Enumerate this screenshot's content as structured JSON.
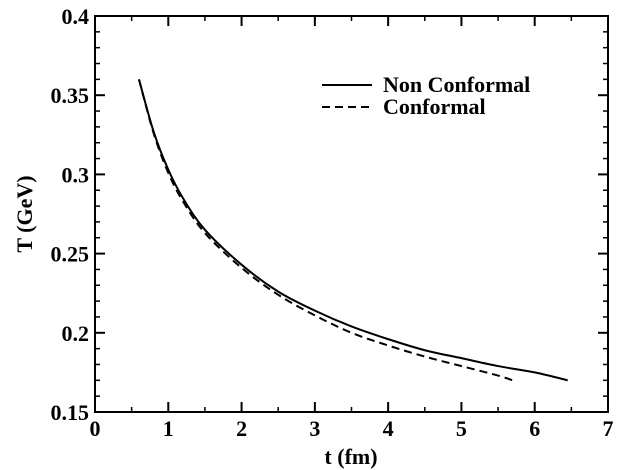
{
  "chart_data": {
    "type": "line",
    "title": "",
    "xlabel": "t (fm)",
    "ylabel": "T (GeV)",
    "xlim": [
      0,
      7
    ],
    "ylim": [
      0.15,
      0.4
    ],
    "x_ticks": [
      "0",
      "1",
      "2",
      "3",
      "4",
      "5",
      "6",
      "7"
    ],
    "y_ticks": [
      "0.15",
      "0.2",
      "0.25",
      "0.3",
      "0.35",
      "0.4"
    ],
    "grid": false,
    "legend_position": "top-right",
    "series": [
      {
        "name": "Non Conformal",
        "style": "solid",
        "color": "#000000",
        "x": [
          0.6,
          0.8,
          1.0,
          1.2,
          1.5,
          2.0,
          2.5,
          3.0,
          3.5,
          4.0,
          4.5,
          5.0,
          5.5,
          6.0,
          6.45
        ],
        "y": [
          0.36,
          0.327,
          0.303,
          0.285,
          0.265,
          0.243,
          0.226,
          0.214,
          0.204,
          0.196,
          0.189,
          0.184,
          0.179,
          0.175,
          0.17
        ]
      },
      {
        "name": "Conformal",
        "style": "dashed",
        "color": "#000000",
        "x": [
          0.6,
          0.8,
          1.0,
          1.2,
          1.5,
          2.0,
          2.5,
          3.0,
          3.5,
          4.0,
          4.5,
          5.0,
          5.5,
          5.7
        ],
        "y": [
          0.36,
          0.326,
          0.301,
          0.283,
          0.263,
          0.241,
          0.224,
          0.211,
          0.2,
          0.192,
          0.185,
          0.179,
          0.173,
          0.17
        ]
      }
    ]
  }
}
